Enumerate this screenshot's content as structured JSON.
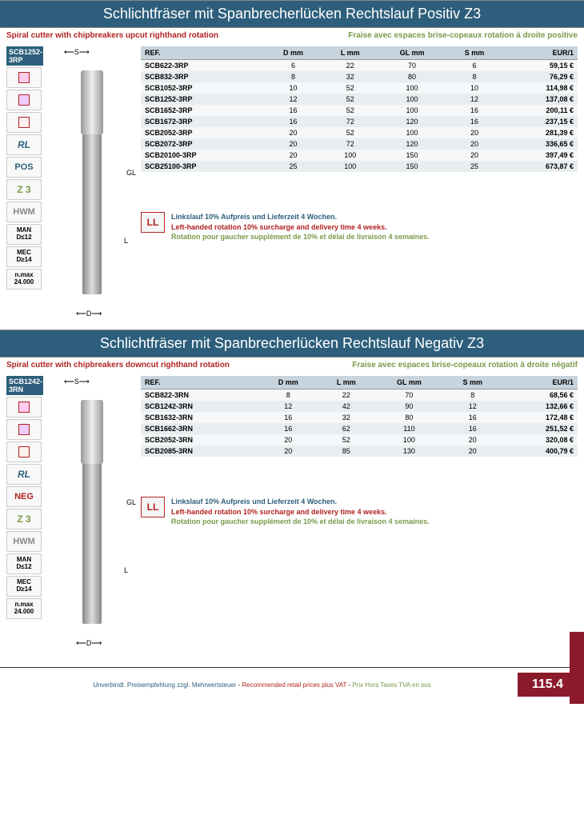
{
  "section1": {
    "title": "Schlichtfräser mit Spanbrecherlücken Rechtslauf Positiv Z3",
    "sub_en": "Spiral cutter with chipbreakers upcut righthand rotation",
    "sub_fr": "Fraise avec espaces brise-copeaux rotation à droite positive",
    "prod_code": "SCB1252-3RP",
    "badges": {
      "rl": "RL",
      "pos": "POS",
      "z3": "Z 3",
      "hwm": "HWM",
      "man": "MAN\nD≤12",
      "mec": "MEC\nD≥14",
      "nmax": "n.max\n24.000"
    },
    "dimS": "S",
    "dimGL": "GL",
    "dimL": "L",
    "dimD": "D",
    "cols": [
      "REF.",
      "D mm",
      "L mm",
      "GL mm",
      "S mm",
      "EUR/1"
    ],
    "rows": [
      [
        "SCB622-3RP",
        "6",
        "22",
        "70",
        "6",
        "59,15 €"
      ],
      [
        "SCB832-3RP",
        "8",
        "32",
        "80",
        "8",
        "76,29 €"
      ],
      [
        "SCB1052-3RP",
        "10",
        "52",
        "100",
        "10",
        "114,98 €"
      ],
      [
        "SCB1252-3RP",
        "12",
        "52",
        "100",
        "12",
        "137,08 €"
      ],
      [
        "SCB1652-3RP",
        "16",
        "52",
        "100",
        "16",
        "200,11 €"
      ],
      [
        "SCB1672-3RP",
        "16",
        "72",
        "120",
        "16",
        "237,15 €"
      ],
      [
        "SCB2052-3RP",
        "20",
        "52",
        "100",
        "20",
        "281,39 €"
      ],
      [
        "SCB2072-3RP",
        "20",
        "72",
        "120",
        "20",
        "336,65 €"
      ],
      [
        "SCB20100-3RP",
        "20",
        "100",
        "150",
        "20",
        "397,49 €"
      ],
      [
        "SCB25100-3RP",
        "25",
        "100",
        "150",
        "25",
        "673,87 €"
      ]
    ]
  },
  "section2": {
    "title": "Schlichtfräser mit Spanbrecherlücken Rechtslauf Negativ Z3",
    "sub_en": "Spiral cutter with chipbreakers downcut righthand rotation",
    "sub_fr": "Fraise avec espaces brise-copeaux rotation à droite négatif",
    "prod_code": "SCB1242-3RN",
    "badges": {
      "rl": "RL",
      "neg": "NEG",
      "z3": "Z 3",
      "hwm": "HWM",
      "man": "MAN\nD≤12",
      "mec": "MEC\nD≥14",
      "nmax": "n.max\n24.000"
    },
    "cols": [
      "REF.",
      "D mm",
      "L mm",
      "GL mm",
      "S mm",
      "EUR/1"
    ],
    "rows": [
      [
        "SCB822-3RN",
        "8",
        "22",
        "70",
        "8",
        "68,56 €"
      ],
      [
        "SCB1242-3RN",
        "12",
        "42",
        "90",
        "12",
        "132,66 €"
      ],
      [
        "SCB1632-3RN",
        "16",
        "32",
        "80",
        "16",
        "172,48 €"
      ],
      [
        "SCB1662-3RN",
        "16",
        "62",
        "110",
        "16",
        "251,52 €"
      ],
      [
        "SCB2052-3RN",
        "20",
        "52",
        "100",
        "20",
        "320,08 €"
      ],
      [
        "SCB2085-3RN",
        "20",
        "85",
        "130",
        "20",
        "400,79 €"
      ]
    ]
  },
  "note": {
    "ll": "LL",
    "de": "Linkslauf 10% Aufpreis und Lieferzeit 4 Wochen.",
    "en": "Left-handed rotation 10% surcharge and delivery time 4 weeks.",
    "fr": "Rotation pour gaucher supplément de 10% et délai de livraison 4 semaines."
  },
  "footer": {
    "de": "Unverbindl. Preisempfehlung zzgl. Mehrwertsteuer",
    "en": "Recommended retail prices plus VAT",
    "fr": "Prix Hors Taxes TVA en sus",
    "page": "115.4"
  }
}
